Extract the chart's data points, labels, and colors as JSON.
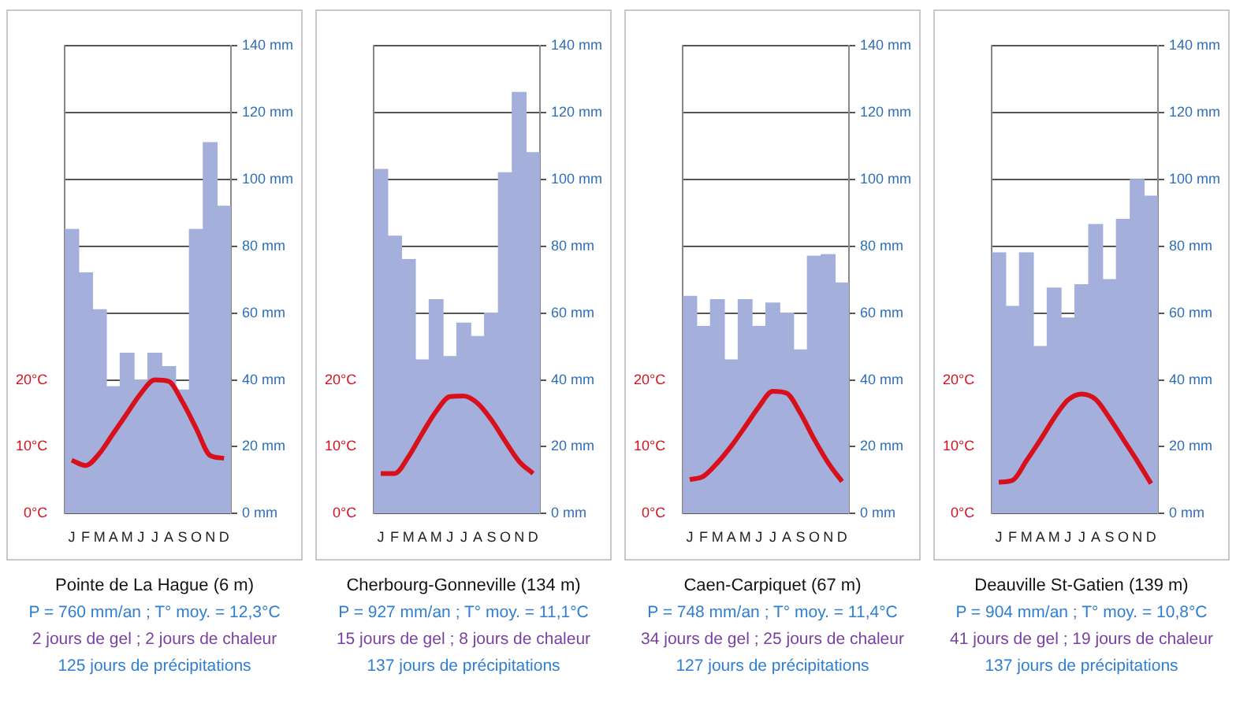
{
  "chart_data": [
    {
      "type": "bar",
      "title": "Pointe de La Hague (6 m)",
      "annotations": [
        "P = 760 mm/an ; T° moy. = 12,3°C",
        "2 jours de gel ; 2 jours de chaleur",
        "125 jours de précipitations"
      ],
      "categories": [
        "J",
        "F",
        "M",
        "A",
        "M",
        "J",
        "J",
        "A",
        "S",
        "O",
        "N",
        "D"
      ],
      "series": [
        {
          "axis": "y2",
          "color": "#a4afdb",
          "values": [
            85,
            72,
            61,
            38,
            48,
            40,
            48,
            44,
            37,
            85,
            111,
            92
          ]
        },
        {
          "type": "line",
          "axis": "y",
          "color": "#d7101c",
          "values": [
            8,
            7.2,
            9,
            12,
            15,
            18,
            20,
            19.8,
            16.7,
            12.7,
            8.7,
            8.3
          ]
        }
      ],
      "ylim": [
        0,
        70
      ],
      "yticks": [
        {
          "value": 0,
          "label": "0°C"
        },
        {
          "value": 10,
          "label": "10°C"
        },
        {
          "value": 20,
          "label": "20°C"
        }
      ],
      "y2lim": [
        0,
        140
      ],
      "y2ticks": [
        {
          "value": 0,
          "label": "0 mm"
        },
        {
          "value": 20,
          "label": "20 mm"
        },
        {
          "value": 40,
          "label": "40 mm"
        },
        {
          "value": 60,
          "label": "60 mm"
        },
        {
          "value": 80,
          "label": "80 mm"
        },
        {
          "value": 100,
          "label": "100 mm"
        },
        {
          "value": 120,
          "label": "120 mm"
        },
        {
          "value": 140,
          "label": "140 mm"
        }
      ],
      "grid": true,
      "legend": false,
      "marker": "none"
    },
    {
      "type": "bar",
      "title": "Cherbourg-Gonneville (134 m)",
      "annotations": [
        "P = 927 mm/an ; T° moy. = 11,1°C",
        "15 jours de gel ; 8 jours de chaleur",
        "137 jours de précipitations"
      ],
      "categories": [
        "J",
        "F",
        "M",
        "A",
        "M",
        "J",
        "J",
        "A",
        "S",
        "O",
        "N",
        "D"
      ],
      "series": [
        {
          "axis": "y2",
          "color": "#a4afdb",
          "values": [
            103,
            83,
            76,
            46,
            64,
            47,
            57,
            53,
            60,
            102,
            126,
            108
          ]
        },
        {
          "type": "line",
          "axis": "y",
          "color": "#d7101c",
          "values": [
            6,
            6,
            8.5,
            12,
            15.3,
            17.5,
            17.6,
            16.5,
            14,
            10.8,
            7.8,
            6
          ]
        }
      ],
      "ylim": [
        0,
        70
      ],
      "yticks": [
        {
          "value": 0,
          "label": "0°C"
        },
        {
          "value": 10,
          "label": "10°C"
        },
        {
          "value": 20,
          "label": "20°C"
        }
      ],
      "y2lim": [
        0,
        140
      ],
      "y2ticks": [
        {
          "value": 0,
          "label": "0 mm"
        },
        {
          "value": 20,
          "label": "20 mm"
        },
        {
          "value": 40,
          "label": "40 mm"
        },
        {
          "value": 60,
          "label": "60 mm"
        },
        {
          "value": 80,
          "label": "80 mm"
        },
        {
          "value": 100,
          "label": "100 mm"
        },
        {
          "value": 120,
          "label": "120 mm"
        },
        {
          "value": 140,
          "label": "140 mm"
        }
      ],
      "grid": true,
      "legend": false,
      "marker": "none"
    },
    {
      "type": "bar",
      "title": "Caen-Carpiquet (67 m)",
      "annotations": [
        "P = 748 mm/an ; T° moy. = 11,4°C",
        "34 jours de gel ; 25 jours de chaleur",
        "127 jours de précipitations"
      ],
      "categories": [
        "J",
        "F",
        "M",
        "A",
        "M",
        "J",
        "J",
        "A",
        "S",
        "O",
        "N",
        "D"
      ],
      "series": [
        {
          "axis": "y2",
          "color": "#a4afdb",
          "values": [
            65,
            56,
            64,
            46,
            64,
            56,
            63,
            60,
            49,
            77,
            77.5,
            69
          ]
        },
        {
          "type": "line",
          "axis": "y",
          "color": "#d7101c",
          "values": [
            5.1,
            5.6,
            7.6,
            10.1,
            13,
            16,
            18.3,
            18,
            15,
            11.1,
            7.6,
            4.8
          ]
        }
      ],
      "ylim": [
        0,
        70
      ],
      "yticks": [
        {
          "value": 0,
          "label": "0°C"
        },
        {
          "value": 10,
          "label": "10°C"
        },
        {
          "value": 20,
          "label": "20°C"
        }
      ],
      "y2lim": [
        0,
        140
      ],
      "y2ticks": [
        {
          "value": 0,
          "label": "0 mm"
        },
        {
          "value": 20,
          "label": "20 mm"
        },
        {
          "value": 40,
          "label": "40 mm"
        },
        {
          "value": 60,
          "label": "60 mm"
        },
        {
          "value": 80,
          "label": "80 mm"
        },
        {
          "value": 100,
          "label": "100 mm"
        },
        {
          "value": 120,
          "label": "120 mm"
        },
        {
          "value": 140,
          "label": "140 mm"
        }
      ],
      "grid": true,
      "legend": false,
      "marker": "none"
    },
    {
      "type": "bar",
      "title": "Deauville St-Gatien (139 m)",
      "annotations": [
        "P = 904 mm/an ; T° moy. = 10,8°C",
        "41 jours de gel ; 19 jours de chaleur",
        "137 jours de précipitations"
      ],
      "categories": [
        "J",
        "F",
        "M",
        "A",
        "M",
        "J",
        "J",
        "A",
        "S",
        "O",
        "N",
        "D"
      ],
      "series": [
        {
          "axis": "y2",
          "color": "#a4afdb",
          "values": [
            78,
            62,
            78,
            50,
            67.5,
            58.5,
            68.5,
            86.5,
            70,
            88,
            100,
            95
          ]
        },
        {
          "type": "line",
          "axis": "y",
          "color": "#d7101c",
          "values": [
            4.7,
            5,
            7.9,
            11,
            14.3,
            17,
            17.9,
            17.1,
            14.3,
            11.1,
            7.9,
            4.5
          ]
        }
      ],
      "ylim": [
        0,
        70
      ],
      "yticks": [
        {
          "value": 0,
          "label": "0°C"
        },
        {
          "value": 10,
          "label": "10°C"
        },
        {
          "value": 20,
          "label": "20°C"
        }
      ],
      "y2lim": [
        0,
        140
      ],
      "y2ticks": [
        {
          "value": 0,
          "label": "0 mm"
        },
        {
          "value": 20,
          "label": "20 mm"
        },
        {
          "value": 40,
          "label": "40 mm"
        },
        {
          "value": 60,
          "label": "60 mm"
        },
        {
          "value": 80,
          "label": "80 mm"
        },
        {
          "value": 100,
          "label": "100 mm"
        },
        {
          "value": 120,
          "label": "120 mm"
        },
        {
          "value": 140,
          "label": "140 mm"
        }
      ],
      "grid": true,
      "legend": false,
      "marker": "none"
    }
  ]
}
